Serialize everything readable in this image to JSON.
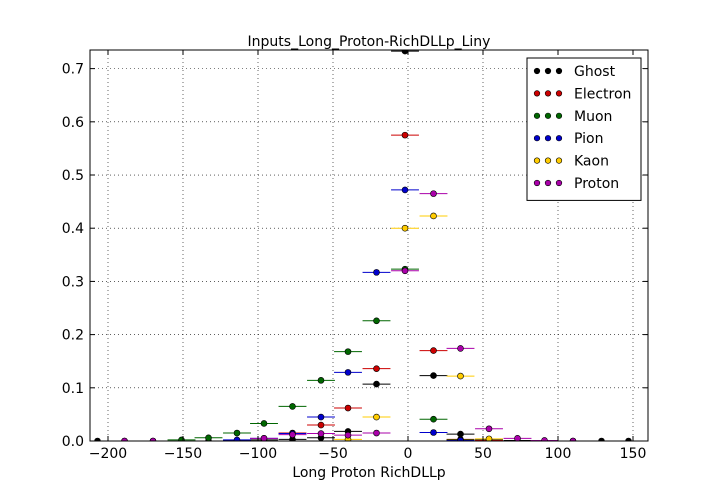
{
  "chart_data": {
    "type": "scatter",
    "title": "Inputs_Long_Proton-RichDLLp_Liny",
    "xlabel": "Long Proton RichDLLp",
    "ylabel": "",
    "xlim": [
      -212,
      160
    ],
    "ylim": [
      0,
      0.735
    ],
    "xticks": [
      -200,
      -150,
      -100,
      -50,
      0,
      50,
      100,
      150
    ],
    "yticks": [
      0.0,
      0.1,
      0.2,
      0.3,
      0.4,
      0.5,
      0.6,
      0.7
    ],
    "xtick_labels": [
      "−200",
      "−150",
      "−100",
      "−50",
      "0",
      "50",
      "100",
      "150"
    ],
    "ytick_labels": [
      "0.0",
      "0.1",
      "0.2",
      "0.3",
      "0.4",
      "0.5",
      "0.6",
      "0.7"
    ],
    "grid": true,
    "legend_position": "top-right",
    "x_error": 9.3,
    "series": [
      {
        "name": "Ghost",
        "color": "#000000",
        "x": [
          -207,
          -189,
          -170,
          -151,
          -133,
          -114,
          -96,
          -77,
          -58,
          -40,
          -21,
          -2,
          17,
          35,
          54,
          73,
          91,
          110,
          129,
          147
        ],
        "y": [
          0,
          0,
          0,
          0,
          0,
          0.001,
          0.002,
          0.003,
          0.006,
          0.018,
          0.107,
          0.733,
          0.123,
          0.013,
          0.003,
          0.001,
          0,
          0,
          0,
          0
        ]
      },
      {
        "name": "Electron",
        "color": "#cc0000",
        "x": [
          -77,
          -58,
          -40,
          -21,
          -2,
          17,
          35,
          54
        ],
        "y": [
          0.015,
          0.03,
          0.062,
          0.136,
          0.575,
          0.17,
          0.003,
          0.001
        ]
      },
      {
        "name": "Muon",
        "color": "#006600",
        "x": [
          -151,
          -133,
          -114,
          -96,
          -77,
          -58,
          -40,
          -21,
          -2,
          17,
          35
        ],
        "y": [
          0.002,
          0.006,
          0.015,
          0.033,
          0.065,
          0.114,
          0.168,
          0.226,
          0.323,
          0.041,
          0.002
        ]
      },
      {
        "name": "Pion",
        "color": "#0000cc",
        "x": [
          -114,
          -96,
          -77,
          -58,
          -40,
          -21,
          -2,
          17,
          35
        ],
        "y": [
          0.002,
          0.005,
          0.014,
          0.045,
          0.129,
          0.317,
          0.472,
          0.016,
          0.001
        ]
      },
      {
        "name": "Kaon",
        "color": "#ffcc00",
        "x": [
          -40,
          -21,
          -2,
          17,
          35,
          54
        ],
        "y": [
          0.003,
          0.045,
          0.4,
          0.423,
          0.122,
          0.004
        ]
      },
      {
        "name": "Proton",
        "color": "#aa00aa",
        "x": [
          -189,
          -170,
          -96,
          -77,
          -58,
          -40,
          -21,
          -2,
          17,
          35,
          54,
          73,
          91,
          110
        ],
        "y": [
          0,
          0,
          0.005,
          0.012,
          0.014,
          0.011,
          0.015,
          0.32,
          0.465,
          0.174,
          0.023,
          0.005,
          0.001,
          0
        ]
      }
    ]
  }
}
